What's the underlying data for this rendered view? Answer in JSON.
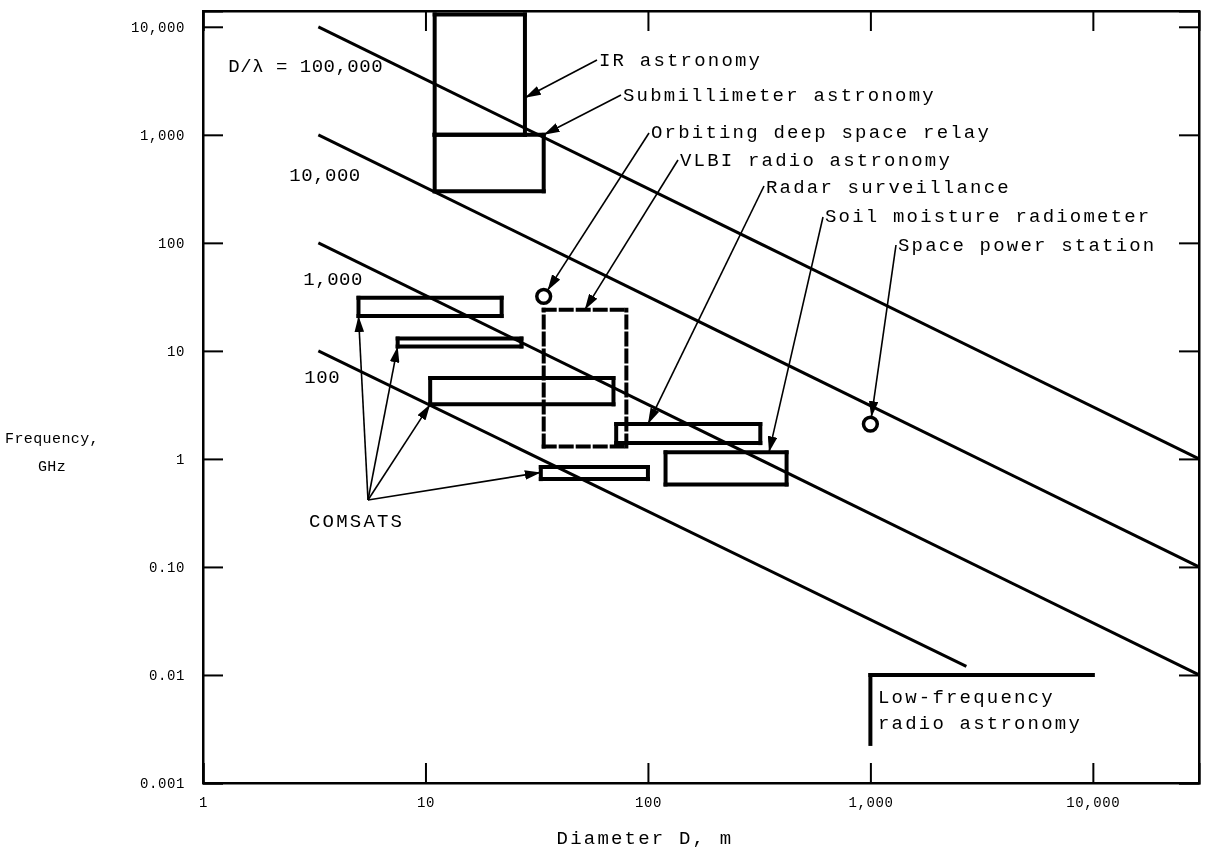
{
  "chart_data": {
    "type": "line",
    "xlabel": "Diameter D, m",
    "ylabel": "Frequency, GHz",
    "log": "xy",
    "xlim": [
      1,
      30000
    ],
    "ylim": [
      0.001,
      14000
    ],
    "xticks": [
      1,
      10,
      100,
      {
        "value": 1000,
        "label": "1,000"
      },
      {
        "value": 10000,
        "label": "10,000"
      }
    ],
    "yticks": [
      0.001,
      0.01,
      {
        "value": 0.1,
        "label": "0.10"
      },
      1,
      10,
      100,
      {
        "value": 1000,
        "label": "1,000"
      },
      {
        "value": 10000,
        "label": "10,000"
      }
    ],
    "series": [
      {
        "name": "D/λ = 100,000",
        "color": "#000000",
        "x": [
          3.3,
          30000
        ],
        "values": [
          10000,
          1
        ]
      },
      {
        "name": "10,000",
        "color": "#000000",
        "x": [
          3.3,
          30000
        ],
        "values": [
          1000,
          0.1
        ]
      },
      {
        "name": "1,000",
        "color": "#000000",
        "x": [
          3.3,
          30000
        ],
        "values": [
          100,
          0.01
        ]
      },
      {
        "name": "100",
        "color": "#000000",
        "x": [
          3.3,
          2700
        ],
        "values": [
          10,
          0.012
        ]
      },
      {
        "color": "#000000",
        "x": [
          11,
          28
        ],
        "values": [
          1000,
          1000
        ],
        "errors": [
          [
            1000,
            13000
          ],
          [
            1000,
            13000
          ]
        ]
      },
      {
        "color": "#000000",
        "x": [
          11,
          28
        ],
        "values": [
          13000,
          13000
        ]
      },
      {
        "color": "#000000",
        "x": [
          11,
          34
        ],
        "values": [
          300,
          300
        ],
        "errors": [
          [
            300,
            1000
          ],
          [
            300,
            1000
          ]
        ]
      },
      {
        "color": "#000000",
        "x": [
          11,
          34
        ],
        "values": [
          1000,
          1000
        ]
      },
      {
        "color": "#000000",
        "x": [
          5,
          22
        ],
        "values": [
          21,
          21
        ],
        "errors": [
          [
            21,
            31
          ],
          [
            21,
            31
          ]
        ]
      },
      {
        "color": "#000000",
        "x": [
          5,
          22
        ],
        "values": [
          31,
          31
        ]
      },
      {
        "color": "#000000",
        "x": [
          7.5,
          27
        ],
        "values": [
          11,
          11
        ],
        "errors": [
          [
            11,
            13
          ],
          [
            11,
            13
          ]
        ]
      },
      {
        "color": "#000000",
        "x": [
          7.5,
          27
        ],
        "values": [
          13,
          13
        ]
      },
      {
        "color": "#000000",
        "x": [
          10.5,
          70
        ],
        "values": [
          3.2,
          3.2
        ],
        "errors": [
          [
            3.2,
            5.6
          ],
          [
            3.2,
            5.6
          ]
        ]
      },
      {
        "color": "#000000",
        "x": [
          10.5,
          70
        ],
        "values": [
          5.6,
          5.6
        ]
      },
      {
        "color": "#000000",
        "x": [
          33,
          100
        ],
        "values": [
          0.65,
          0.65
        ],
        "errors": [
          [
            0.65,
            0.84
          ],
          [
            0.65,
            0.84
          ]
        ]
      },
      {
        "color": "#000000",
        "x": [
          33,
          100
        ],
        "values": [
          0.84,
          0.84
        ]
      },
      {
        "color": "#000000",
        "line_style": "dashed",
        "x": [
          34,
          80
        ],
        "values": [
          1.3,
          1.3
        ],
        "errors": [
          [
            1.3,
            24
          ],
          [
            1.3,
            24
          ]
        ]
      },
      {
        "color": "#000000",
        "line_style": "dashed",
        "x": [
          34,
          80
        ],
        "values": [
          24,
          24
        ]
      },
      {
        "color": "#000000",
        "x": [
          72,
          320
        ],
        "values": [
          1.4,
          1.4
        ],
        "errors": [
          [
            1.4,
            2.1
          ],
          [
            1.4,
            2.1
          ]
        ]
      },
      {
        "color": "#000000",
        "x": [
          72,
          320
        ],
        "values": [
          2.1,
          2.1
        ]
      },
      {
        "color": "#000000",
        "x": [
          120,
          420
        ],
        "values": [
          0.58,
          0.58
        ],
        "errors": [
          [
            0.58,
            1.15
          ],
          [
            0.58,
            1.15
          ]
        ]
      },
      {
        "color": "#000000",
        "x": [
          120,
          420
        ],
        "values": [
          1.15,
          1.15
        ]
      },
      {
        "type": "scatter",
        "marker": "circle",
        "color": "#000000",
        "x": [
          34,
          1000
        ],
        "values": [
          32,
          2.1
        ]
      },
      {
        "color": "#000000",
        "x": [
          1000,
          10000
        ],
        "values": [
          0.01,
          0.01
        ],
        "errors": [
          [
            0.0023,
            0.01
          ],
          null
        ]
      }
    ],
    "annotations": [
      {
        "text": "IR astronomy",
        "x": 28,
        "y": 2200
      },
      {
        "text": "Submillimeter astronomy",
        "x": 34,
        "y": 1000
      },
      {
        "text": "Orbiting deep space relay",
        "x": 34,
        "y": 32
      },
      {
        "text": "VLBI radio astronomy",
        "x": 52,
        "y": 24
      },
      {
        "text": "Radar surveillance",
        "x": 100,
        "y": 2.1
      },
      {
        "text": "Soil moisture radiometer",
        "x": 350,
        "y": 1.15
      },
      {
        "text": "Space power station",
        "x": 1000,
        "y": 2.1
      },
      {
        "text": "COMSATS",
        "x": 33,
        "y": 0.75
      },
      {
        "text": "Low-frequency radio astronomy",
        "x": 1000,
        "y": 0.005
      }
    ]
  }
}
